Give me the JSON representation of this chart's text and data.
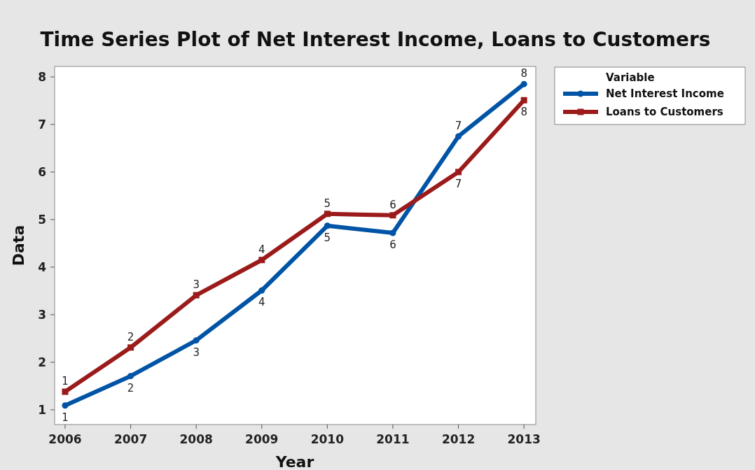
{
  "chart_data": {
    "type": "line",
    "title": "Time Series Plot of Net Interest Income, Loans to Customers",
    "xlabel": "Year",
    "ylabel": "Data",
    "legend_title": "Variable",
    "legend": "top right",
    "grid": false,
    "x": [
      2006,
      2007,
      2008,
      2009,
      2010,
      2011,
      2012,
      2013
    ],
    "xlim": [
      2005.84,
      2013.18
    ],
    "xticks": [
      2006,
      2007,
      2008,
      2009,
      2010,
      2011,
      2012,
      2013
    ],
    "ylim": [
      0.69,
      8.22
    ],
    "yticks": [
      1,
      2,
      3,
      4,
      5,
      6,
      7,
      8
    ],
    "series": [
      {
        "name": "Net Interest Income",
        "color": "#0054a6",
        "marker": "circle",
        "values": [
          1.09,
          1.71,
          2.46,
          3.51,
          4.87,
          4.72,
          6.75,
          7.85
        ]
      },
      {
        "name": "Loans to Customers",
        "color": "#9b1b1b",
        "marker": "square",
        "values": [
          1.38,
          2.31,
          3.41,
          4.15,
          5.12,
          5.09,
          6.0,
          7.51
        ]
      }
    ],
    "annotations": [
      {
        "text": "1",
        "x": 2006,
        "y": 1.09
      },
      {
        "text": "2",
        "x": 2007,
        "y": 1.71
      },
      {
        "text": "3",
        "x": 2008,
        "y": 2.46
      },
      {
        "text": "4",
        "x": 2009,
        "y": 3.51
      },
      {
        "text": "5",
        "x": 2010,
        "y": 4.87
      },
      {
        "text": "6",
        "x": 2011,
        "y": 4.72
      },
      {
        "text": "7",
        "x": 2012,
        "y": 6.75
      },
      {
        "text": "8",
        "x": 2013,
        "y": 7.85
      },
      {
        "text": "1",
        "x": 2006,
        "y": 1.38
      },
      {
        "text": "2",
        "x": 2007,
        "y": 2.31
      },
      {
        "text": "3",
        "x": 2008,
        "y": 3.41
      },
      {
        "text": "4",
        "x": 2009,
        "y": 4.15
      },
      {
        "text": "5",
        "x": 2010,
        "y": 5.12
      },
      {
        "text": "6",
        "x": 2011,
        "y": 5.09
      },
      {
        "text": "7",
        "x": 2012,
        "y": 6.0
      },
      {
        "text": "8",
        "x": 2013,
        "y": 7.51
      }
    ]
  }
}
